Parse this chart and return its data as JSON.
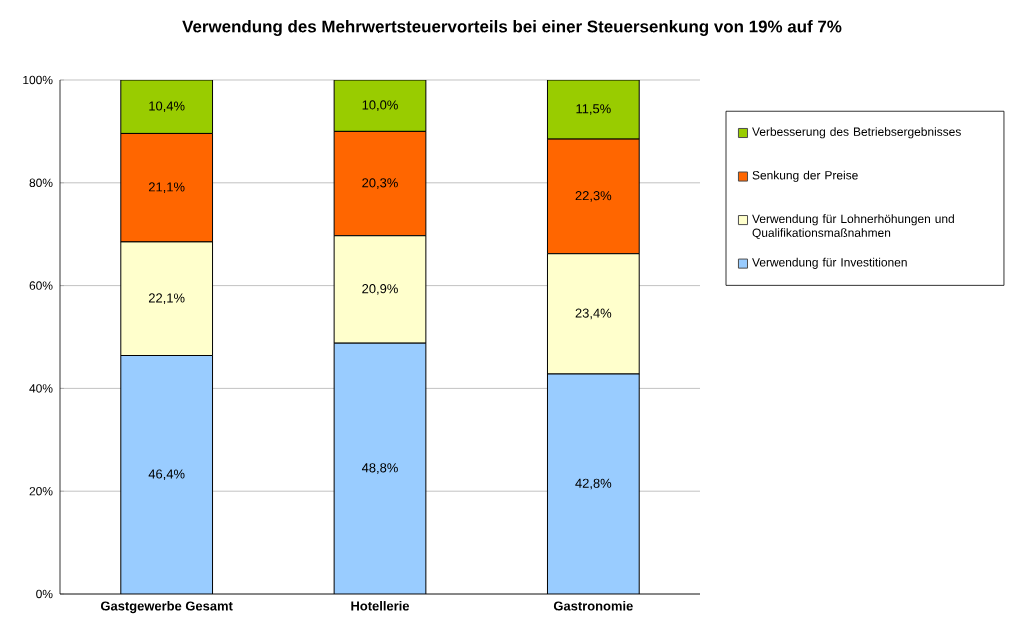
{
  "chart_data": {
    "type": "bar",
    "stacked": true,
    "title": "Verwendung des Mehrwertsteuervorteils bei einer Steuersenkung von 19% auf 7%",
    "categories": [
      "Gastgewerbe Gesamt",
      "Hotellerie",
      "Gastronomie"
    ],
    "series": [
      {
        "name": "Verwendung für Investitionen",
        "color": "#99ccff",
        "values": [
          46.4,
          48.8,
          42.8
        ],
        "value_labels": [
          "46,4%",
          "48,8%",
          "42,8%"
        ]
      },
      {
        "name": "Verwendung für Lohnerhöhungen und Qualifikationsmaßnahmen",
        "color": "#ffffcc",
        "values": [
          22.1,
          20.9,
          23.4
        ],
        "value_labels": [
          "22,1%",
          "20,9%",
          "23,4%"
        ]
      },
      {
        "name": "Senkung der Preise",
        "color": "#ff6600",
        "values": [
          21.1,
          20.3,
          22.3
        ],
        "value_labels": [
          "21,1%",
          "20,3%",
          "22,3%"
        ]
      },
      {
        "name": "Verbesserung des Betriebsergebnisses",
        "color": "#99cc00",
        "values": [
          10.4,
          10.0,
          11.5
        ],
        "value_labels": [
          "10,4%",
          "10,0%",
          "11,5%"
        ]
      }
    ],
    "ylim": [
      0,
      100
    ],
    "yticks": [
      {
        "value": 0,
        "label": "0%"
      },
      {
        "value": 20,
        "label": "20%"
      },
      {
        "value": 40,
        "label": "40%"
      },
      {
        "value": 60,
        "label": "60%"
      },
      {
        "value": 80,
        "label": "80%"
      },
      {
        "value": 100,
        "label": "100%"
      }
    ],
    "grid": "y",
    "legend": "right"
  }
}
